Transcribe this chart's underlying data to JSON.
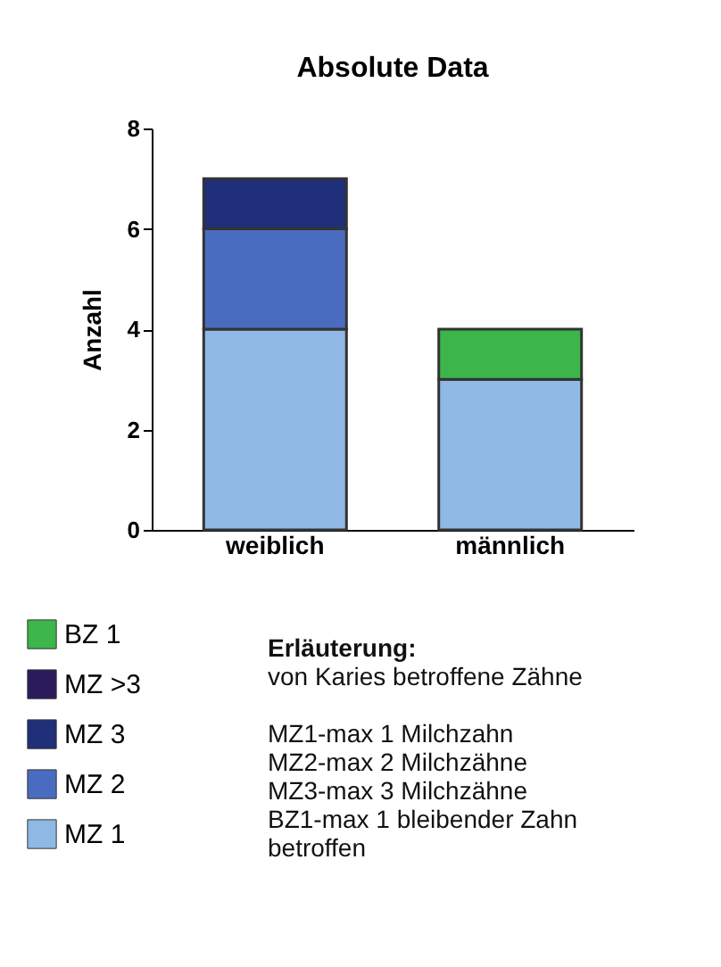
{
  "chart_data": {
    "type": "bar",
    "title": "Absolute Data",
    "ylabel": "Anzahl",
    "categories": [
      "weiblich",
      "männlich"
    ],
    "stacked": true,
    "series": [
      {
        "name": "MZ 1",
        "color": "#8fb8e4",
        "values": [
          4,
          3
        ]
      },
      {
        "name": "MZ 2",
        "color": "#4a6cc0",
        "values": [
          2,
          0
        ]
      },
      {
        "name": "MZ 3",
        "color": "#1f2f7a",
        "values": [
          1,
          0
        ]
      },
      {
        "name": "MZ >3",
        "color": "#2b1a5c",
        "values": [
          0,
          0
        ]
      },
      {
        "name": "BZ 1",
        "color": "#3cb54a",
        "values": [
          0,
          1
        ]
      }
    ],
    "ylim": [
      0,
      8
    ],
    "yticks": [
      0,
      2,
      4,
      6,
      8
    ],
    "grid": false,
    "legend": "bottom left",
    "annotations": [
      "Erläuterung:",
      "von Karies betroffene Zähne",
      "MZ1-max 1 Milchzahn\nMZ2-max 2 Milchzähne\nMZ3-max 3 Milchzähne\nBZ1-max 1 bleibender Zahn\nbetroffen"
    ]
  }
}
